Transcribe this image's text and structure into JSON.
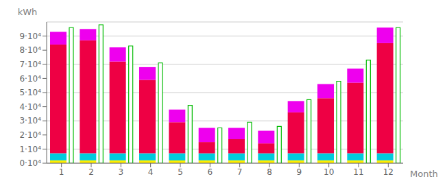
{
  "chart_data": {
    "type": "bar",
    "x_label": "Month",
    "y_label": "kWh",
    "categories": [
      "1",
      "2",
      "3",
      "4",
      "5",
      "6",
      "7",
      "8",
      "9",
      "10",
      "11",
      "12"
    ],
    "stacked": true,
    "series": [
      {
        "color": "#FFEE00",
        "values": [
          2000,
          2000,
          2000,
          2000,
          2000,
          2000,
          2000,
          2000,
          2000,
          2000,
          2000,
          2000
        ]
      },
      {
        "color": "#00CCDD",
        "values": [
          5000,
          5000,
          5000,
          5000,
          5000,
          5000,
          5000,
          5000,
          5000,
          5000,
          5000,
          5000
        ]
      },
      {
        "color": "#EE0044",
        "values": [
          77000,
          80000,
          65000,
          52000,
          22000,
          8000,
          10000,
          7000,
          29000,
          39000,
          50000,
          78000
        ]
      },
      {
        "color": "#EE00EE",
        "values": [
          9000,
          8000,
          10000,
          9000,
          9000,
          10000,
          8000,
          9000,
          8000,
          10000,
          10000,
          11000
        ]
      },
      {
        "type": "outline",
        "color": "#00BB00",
        "values": [
          96000,
          98000,
          83000,
          71000,
          41000,
          25000,
          29000,
          26000,
          45000,
          58000,
          73000,
          96000
        ]
      }
    ],
    "ylim": [
      0,
      100000
    ],
    "yticks": [
      {
        "value": 0,
        "label": "0·10⁴"
      },
      {
        "value": 10000,
        "label": "1·10⁴"
      },
      {
        "value": 20000,
        "label": "2·10⁴"
      },
      {
        "value": 30000,
        "label": "3·10⁴"
      },
      {
        "value": 40000,
        "label": "4·10⁴"
      },
      {
        "value": 50000,
        "label": "5·10⁴"
      },
      {
        "value": 60000,
        "label": "6·10⁴"
      },
      {
        "value": 70000,
        "label": "7·10⁴"
      },
      {
        "value": 80000,
        "label": "8·10⁴"
      },
      {
        "value": 90000,
        "label": "9·10⁴"
      }
    ],
    "grid": true
  }
}
